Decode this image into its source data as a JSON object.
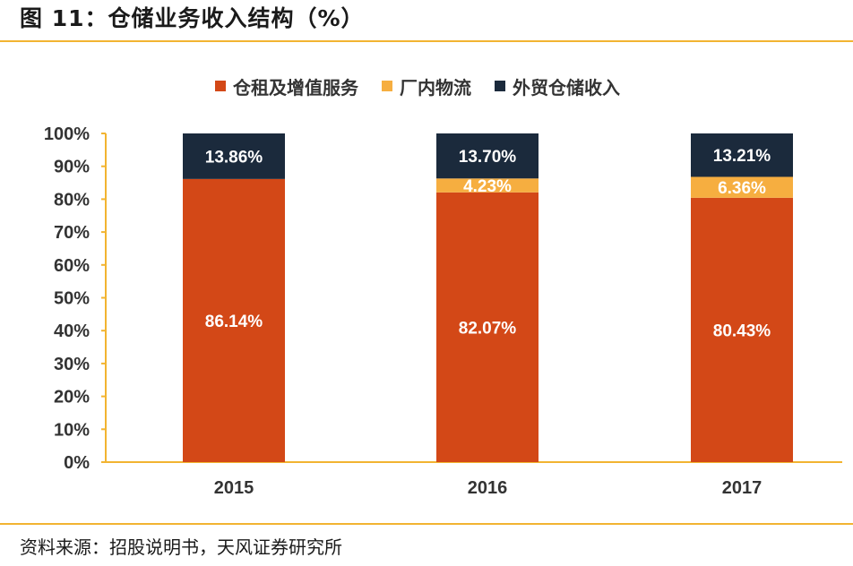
{
  "figure": {
    "title": "图 11：仓储业务收入结构（%）",
    "source": "资料来源：招股说明书，天风证券研究所"
  },
  "colors": {
    "rule": "#f2b431",
    "axis": "#f2b431",
    "series": [
      "#d34817",
      "#f6ae40",
      "#1b2a3c"
    ]
  },
  "chart_data": {
    "type": "bar",
    "stacked": true,
    "categories": [
      "2015",
      "2016",
      "2017"
    ],
    "series": [
      {
        "name": "仓租及增值服务",
        "values": [
          86.14,
          82.07,
          80.43
        ],
        "labels": [
          "86.14%",
          "82.07%",
          "80.43%"
        ]
      },
      {
        "name": "厂内物流",
        "values": [
          0,
          4.23,
          6.36
        ],
        "labels": [
          "",
          "4.23%",
          "6.36%"
        ]
      },
      {
        "name": "外贸仓储收入",
        "values": [
          13.86,
          13.7,
          13.21
        ],
        "labels": [
          "13.86%",
          "13.70%",
          "13.21%"
        ]
      }
    ],
    "ylim": [
      0,
      100
    ],
    "yticks": [
      "0%",
      "10%",
      "20%",
      "30%",
      "40%",
      "50%",
      "60%",
      "70%",
      "80%",
      "90%",
      "100%"
    ],
    "legend_position": "top",
    "grid": false,
    "xlabel": "",
    "ylabel": ""
  }
}
